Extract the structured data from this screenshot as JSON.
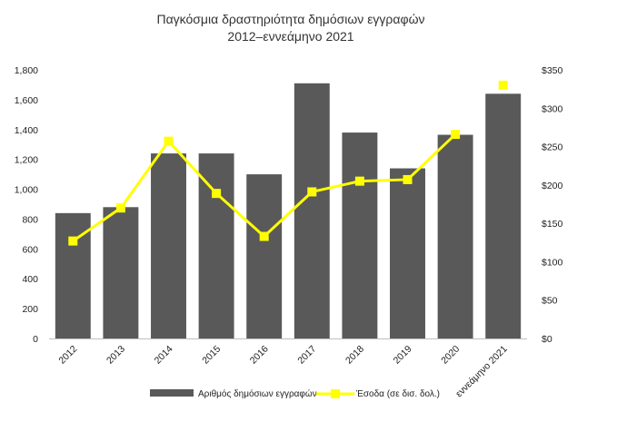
{
  "chart_data": {
    "type": "bar",
    "title": "Παγκόσμια δραστηριότητα δημόσιων εγγραφών",
    "subtitle": "2012–εννεάμηνο 2021",
    "categories": [
      "2012",
      "2013",
      "2014",
      "2015",
      "2016",
      "2017",
      "2018",
      "2019",
      "2020",
      "εννεάμηνο 2021"
    ],
    "series": [
      {
        "name": "Αριθμός δημόσιων εγγραφών",
        "type": "bar",
        "axis": "left",
        "color": "#595959",
        "values": [
          840,
          880,
          1240,
          1240,
          1100,
          1710,
          1380,
          1140,
          1365,
          1640
        ]
      },
      {
        "name": "Έσοδα (σε δισ. δολ.)",
        "type": "line",
        "axis": "right",
        "color": "#FFFF00",
        "values": [
          127,
          170,
          257,
          189,
          133,
          191,
          205,
          207,
          266,
          330
        ]
      }
    ],
    "y_left": {
      "ylim": [
        0,
        1800
      ],
      "ticks": [
        0,
        200,
        400,
        600,
        800,
        1000,
        1200,
        1400,
        1600,
        1800
      ],
      "tick_labels": [
        "0",
        "200",
        "400",
        "600",
        "800",
        "1,000",
        "1,200",
        "1,400",
        "1,600",
        "1,800"
      ]
    },
    "y_right": {
      "ylim": [
        0,
        350
      ],
      "ticks": [
        0,
        50,
        100,
        150,
        200,
        250,
        300,
        350
      ],
      "tick_labels": [
        "$0",
        "$50",
        "$100",
        "$150",
        "$200",
        "$250",
        "$300",
        "$350"
      ]
    },
    "line_connected_points": 9,
    "grid": false,
    "legend_placement": "bottom"
  }
}
